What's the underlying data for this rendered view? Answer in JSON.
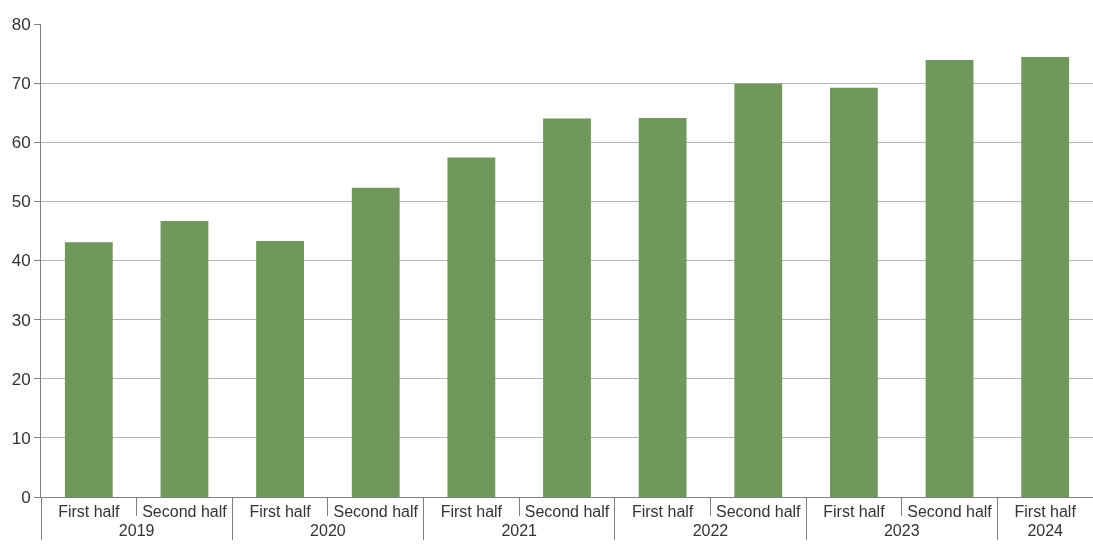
{
  "chart_data": {
    "type": "bar",
    "categories": [
      "First half",
      "Second half",
      "First half",
      "Second half",
      "First half",
      "Second half",
      "First half",
      "Second half",
      "First half",
      "Second half",
      "First half"
    ],
    "annotations": [
      "2019",
      "2020",
      "2021",
      "2022",
      "2023",
      "2024"
    ],
    "values": [
      43.1,
      46.7,
      43.3,
      52.3,
      57.4,
      64.0,
      64.1,
      69.9,
      69.2,
      73.9,
      74.4
    ],
    "color": "#71985c",
    "ylim": [
      0,
      80
    ],
    "yticks": [
      0,
      10,
      20,
      30,
      40,
      50,
      60,
      70,
      80
    ],
    "grid": "y"
  }
}
